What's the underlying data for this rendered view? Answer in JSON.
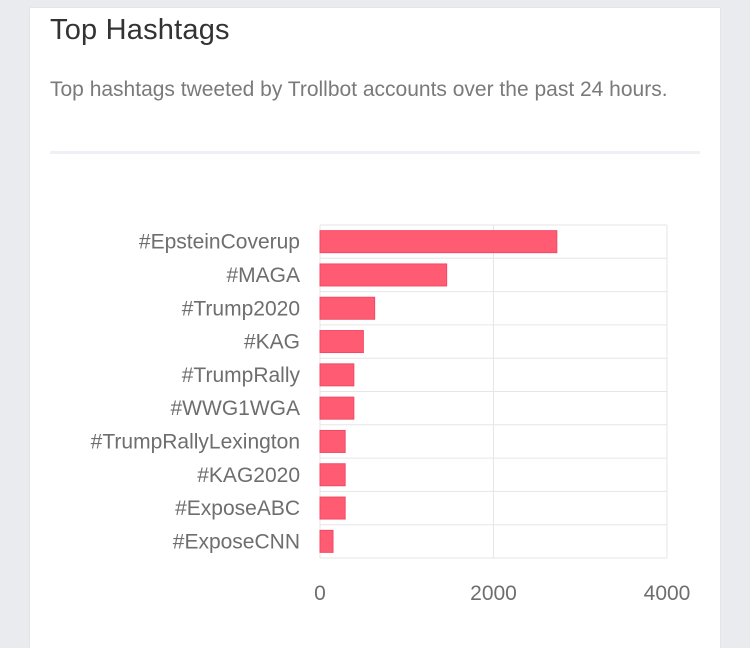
{
  "card": {
    "title": "Top Hashtags",
    "subtitle": "Top hashtags tweeted by Trollbot accounts over the past 24 hours."
  },
  "colors": {
    "bar_fill": "#ff5c74",
    "bar_stroke": "#f24a64",
    "grid": "#e6e6e6"
  },
  "chart_data": {
    "type": "bar",
    "orientation": "horizontal",
    "categories": [
      "#EpsteinCoverup",
      "#MAGA",
      "#Trump2020",
      "#KAG",
      "#TrumpRally",
      "#WWG1WGA",
      "#TrumpRallyLexington",
      "#KAG2020",
      "#ExposeABC",
      "#ExposeCNN"
    ],
    "values": [
      2730,
      1460,
      630,
      500,
      390,
      390,
      290,
      290,
      290,
      150
    ],
    "xlim": [
      0,
      4000
    ],
    "xticks": [
      0,
      2000,
      4000
    ],
    "grid": true,
    "legend": "none"
  }
}
